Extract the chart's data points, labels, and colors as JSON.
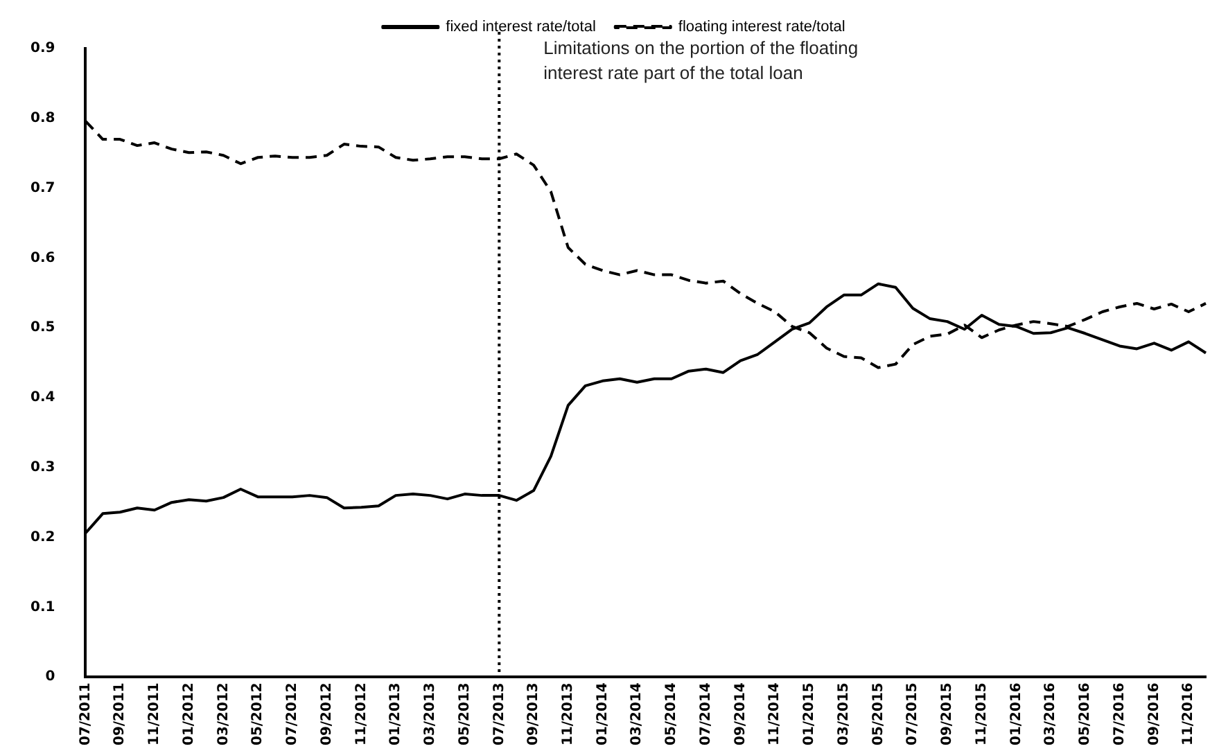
{
  "chart_data": {
    "type": "line",
    "categories": [
      "07/2011",
      null,
      "09/2011",
      null,
      "11/2011",
      null,
      "01/2012",
      null,
      "03/2012",
      null,
      "05/2012",
      null,
      "07/2012",
      null,
      "09/2012",
      null,
      "11/2012",
      null,
      "01/2013",
      null,
      "03/2013",
      null,
      "05/2013",
      null,
      "07/2013",
      null,
      "09/2013",
      null,
      "11/2013",
      null,
      "01/2014",
      null,
      "03/2014",
      null,
      "05/2014",
      null,
      "07/2014",
      null,
      "09/2014",
      null,
      "11/2014",
      null,
      "01/2015",
      null,
      "03/2015",
      null,
      "05/2015",
      null,
      "07/2015",
      null,
      "09/2015",
      null,
      "11/2015",
      null,
      "01/2016",
      null,
      "03/2016",
      null,
      "05/2016",
      null,
      "07/2016",
      null,
      "09/2016",
      null,
      "11/2016",
      null
    ],
    "series": [
      {
        "name": "fixed interest rate/total",
        "color": "#000000",
        "line_style": "solid",
        "values": [
          0.206,
          0.234,
          0.236,
          0.242,
          0.239,
          0.25,
          0.254,
          0.252,
          0.257,
          0.269,
          0.258,
          0.258,
          0.258,
          0.26,
          0.257,
          0.242,
          0.243,
          0.245,
          0.26,
          0.262,
          0.26,
          0.255,
          0.262,
          0.26,
          0.26,
          0.253,
          0.267,
          0.316,
          0.389,
          0.417,
          0.424,
          0.427,
          0.422,
          0.427,
          0.427,
          0.438,
          0.441,
          0.436,
          0.453,
          0.462,
          0.48,
          0.498,
          0.507,
          0.53,
          0.547,
          0.547,
          0.563,
          0.558,
          0.528,
          0.513,
          0.509,
          0.498,
          0.518,
          0.505,
          0.502,
          0.492,
          0.493,
          0.5,
          0.492,
          0.483,
          0.474,
          0.47,
          0.478,
          0.468,
          0.48,
          0.464
        ]
      },
      {
        "name": "floating interest rate/total",
        "color": "#000000",
        "line_style": "dashed",
        "values": [
          0.796,
          0.77,
          0.77,
          0.761,
          0.765,
          0.756,
          0.751,
          0.752,
          0.747,
          0.735,
          0.744,
          0.746,
          0.744,
          0.744,
          0.747,
          0.763,
          0.76,
          0.759,
          0.744,
          0.74,
          0.742,
          0.745,
          0.745,
          0.742,
          0.742,
          0.749,
          0.733,
          0.695,
          0.615,
          0.591,
          0.582,
          0.576,
          0.582,
          0.576,
          0.576,
          0.568,
          0.564,
          0.567,
          0.549,
          0.535,
          0.523,
          0.502,
          0.493,
          0.471,
          0.459,
          0.457,
          0.443,
          0.448,
          0.476,
          0.488,
          0.491,
          0.504,
          0.486,
          0.497,
          0.504,
          0.509,
          0.506,
          0.502,
          0.512,
          0.523,
          0.53,
          0.535,
          0.527,
          0.534,
          0.523,
          0.535
        ]
      }
    ],
    "ylim": [
      0,
      0.9
    ],
    "yticks": [
      0,
      0.1,
      0.2,
      0.3,
      0.4,
      0.5,
      0.6,
      0.7,
      0.8,
      0.9
    ],
    "grid": false,
    "legend": "top",
    "marker": "none",
    "ref_lines": [
      {
        "axis": "x",
        "value": "07/2013",
        "label": "Limitations on the portion of the floating interest rate part of the total loan",
        "line_style": "dotted",
        "color": "#000000"
      }
    ]
  }
}
